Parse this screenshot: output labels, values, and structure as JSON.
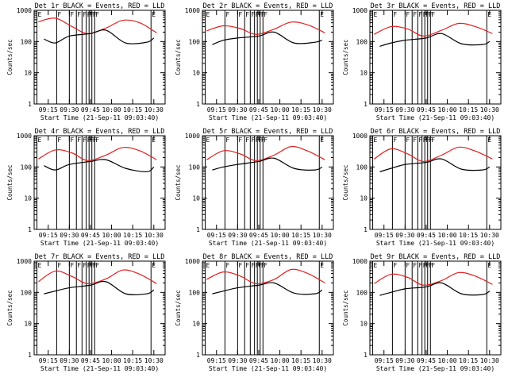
{
  "figure": {
    "panels_layout": "3x3 grid",
    "colors": {
      "events": "#000000",
      "lld": "#e02020",
      "axes": "#000000",
      "background": "#ffffff"
    }
  },
  "chart_data": [
    {
      "type": "line",
      "title": "Det 1r BLACK = Events, RED = LLD",
      "xlabel": "Start Time (21-Sep-11 09:03:40)",
      "ylabel": "Counts/sec",
      "yscale": "log",
      "ylim": [
        1,
        1000
      ],
      "xlim": [
        "09:05",
        "10:38"
      ],
      "ytick_labels": [
        "1",
        "10",
        "100",
        "1000"
      ],
      "xtick_labels": [
        "09:15",
        "09:30",
        "09:45",
        "10:00",
        "10:15",
        "10:30"
      ],
      "flag_labels": [
        "E",
        "F",
        "F",
        "F",
        "F",
        "F",
        "F",
        "F",
        "F",
        "E"
      ],
      "series": [
        {
          "x": [
            "09:08",
            "09:20",
            "09:32",
            "09:43",
            "09:56",
            "10:08",
            "10:20",
            "10:32"
          ],
          "values": [
            430,
            560,
            300,
            180,
            270,
            480,
            400,
            190
          ]
        },
        {
          "x": [
            "09:12",
            "09:20",
            "09:30",
            "09:45",
            "09:56",
            "10:10",
            "10:25",
            "10:30"
          ],
          "values": [
            120,
            90,
            150,
            180,
            230,
            90,
            95,
            130
          ]
        }
      ]
    },
    {
      "type": "line",
      "title": "Det 2r BLACK = Events, RED = LLD",
      "xlabel": "Start Time (21-Sep-11 09:03:40)",
      "ylabel": "Counts/sec",
      "yscale": "log",
      "ylim": [
        1,
        1000
      ],
      "xlim": [
        "09:05",
        "10:38"
      ],
      "ytick_labels": [
        "1",
        "10",
        "100",
        "1000"
      ],
      "xtick_labels": [
        "09:15",
        "09:30",
        "09:45",
        "10:00",
        "10:15",
        "10:30"
      ],
      "flag_labels": [
        "E",
        "F",
        "F",
        "F",
        "F",
        "F",
        "F",
        "F",
        "F",
        "E"
      ],
      "series": [
        {
          "x": [
            "09:08",
            "09:20",
            "09:32",
            "09:43",
            "09:56",
            "10:08",
            "10:20",
            "10:32"
          ],
          "values": [
            220,
            320,
            260,
            170,
            250,
            420,
            340,
            190
          ]
        },
        {
          "x": [
            "09:12",
            "09:20",
            "09:30",
            "09:45",
            "09:56",
            "10:10",
            "10:25",
            "10:30"
          ],
          "values": [
            80,
            110,
            130,
            150,
            200,
            90,
            95,
            110
          ]
        }
      ]
    },
    {
      "type": "line",
      "title": "Det 3r BLACK = Events, RED = LLD",
      "xlabel": "Start Time (21-Sep-11 09:03:40)",
      "ylabel": "Counts/sec",
      "yscale": "log",
      "ylim": [
        1,
        1000
      ],
      "xlim": [
        "09:05",
        "10:38"
      ],
      "ytick_labels": [
        "1",
        "10",
        "100",
        "1000"
      ],
      "xtick_labels": [
        "09:15",
        "09:30",
        "09:45",
        "10:00",
        "10:15",
        "10:30"
      ],
      "flag_labels": [
        "E",
        "F",
        "F",
        "F",
        "F",
        "F",
        "F",
        "F",
        "F",
        "E"
      ],
      "series": [
        {
          "x": [
            "09:08",
            "09:20",
            "09:32",
            "09:43",
            "09:56",
            "10:08",
            "10:20",
            "10:32"
          ],
          "values": [
            170,
            300,
            250,
            150,
            230,
            380,
            300,
            180
          ]
        },
        {
          "x": [
            "09:12",
            "09:20",
            "09:30",
            "09:45",
            "09:56",
            "10:10",
            "10:25",
            "10:30"
          ],
          "values": [
            70,
            90,
            110,
            130,
            180,
            85,
            80,
            100
          ]
        }
      ]
    },
    {
      "type": "line",
      "title": "Det 4r BLACK = Events, RED = LLD",
      "xlabel": "Start Time (21-Sep-11 09:03:40)",
      "ylabel": "Counts/sec",
      "yscale": "log",
      "ylim": [
        1,
        1000
      ],
      "xlim": [
        "09:05",
        "10:38"
      ],
      "ytick_labels": [
        "1",
        "10",
        "100",
        "1000"
      ],
      "xtick_labels": [
        "09:15",
        "09:30",
        "09:45",
        "10:00",
        "10:15",
        "10:30"
      ],
      "flag_labels": [
        "E",
        "F",
        "F",
        "F",
        "F",
        "F",
        "F",
        "F",
        "F",
        "E"
      ],
      "series": [
        {
          "x": [
            "09:08",
            "09:20",
            "09:32",
            "09:43",
            "09:56",
            "10:08",
            "10:20",
            "10:32"
          ],
          "values": [
            180,
            350,
            280,
            160,
            240,
            420,
            330,
            170
          ]
        },
        {
          "x": [
            "09:12",
            "09:20",
            "09:30",
            "09:45",
            "09:56",
            "10:10",
            "10:25",
            "10:30"
          ],
          "values": [
            110,
            80,
            120,
            150,
            170,
            90,
            70,
            100
          ]
        }
      ]
    },
    {
      "type": "line",
      "title": "Det 5r BLACK = Events, RED = LLD",
      "xlabel": "Start Time (21-Sep-11 09:03:40)",
      "ylabel": "Counts/sec",
      "yscale": "log",
      "ylim": [
        1,
        1000
      ],
      "xlim": [
        "09:05",
        "10:38"
      ],
      "ytick_labels": [
        "1",
        "10",
        "100",
        "1000"
      ],
      "xtick_labels": [
        "09:15",
        "09:30",
        "09:45",
        "10:00",
        "10:15",
        "10:30"
      ],
      "flag_labels": [
        "E",
        "F",
        "F",
        "F",
        "F",
        "F",
        "F",
        "F",
        "F",
        "E"
      ],
      "series": [
        {
          "x": [
            "09:08",
            "09:20",
            "09:32",
            "09:43",
            "09:56",
            "10:08",
            "10:20",
            "10:32"
          ],
          "values": [
            170,
            330,
            260,
            160,
            240,
            450,
            320,
            170
          ]
        },
        {
          "x": [
            "09:12",
            "09:20",
            "09:30",
            "09:45",
            "09:56",
            "10:10",
            "10:25",
            "10:30"
          ],
          "values": [
            80,
            100,
            120,
            150,
            190,
            90,
            80,
            100
          ]
        }
      ]
    },
    {
      "type": "line",
      "title": "Det 6r BLACK = Events, RED = LLD",
      "xlabel": "Start Time (21-Sep-11 09:03:40)",
      "ylabel": "Counts/sec",
      "yscale": "log",
      "ylim": [
        1,
        1000
      ],
      "xlim": [
        "09:05",
        "10:38"
      ],
      "ytick_labels": [
        "1",
        "10",
        "100",
        "1000"
      ],
      "xtick_labels": [
        "09:15",
        "09:30",
        "09:45",
        "10:00",
        "10:15",
        "10:30"
      ],
      "flag_labels": [
        "E",
        "F",
        "F",
        "F",
        "F",
        "F",
        "F",
        "F",
        "F",
        "E"
      ],
      "series": [
        {
          "x": [
            "09:08",
            "09:20",
            "09:32",
            "09:43",
            "09:56",
            "10:08",
            "10:20",
            "10:32"
          ],
          "values": [
            180,
            380,
            260,
            150,
            240,
            430,
            320,
            180
          ]
        },
        {
          "x": [
            "09:12",
            "09:20",
            "09:30",
            "09:45",
            "09:56",
            "10:10",
            "10:25",
            "10:30"
          ],
          "values": [
            70,
            90,
            120,
            140,
            180,
            85,
            80,
            100
          ]
        }
      ]
    },
    {
      "type": "line",
      "title": "Det 7r BLACK = Events, RED = LLD",
      "xlabel": "Start Time (21-Sep-11 09:03:40)",
      "ylabel": "Counts/sec",
      "yscale": "log",
      "ylim": [
        1,
        1000
      ],
      "xlim": [
        "09:05",
        "10:38"
      ],
      "ytick_labels": [
        "1",
        "10",
        "100",
        "1000"
      ],
      "xtick_labels": [
        "09:15",
        "09:30",
        "09:45",
        "10:00",
        "10:15",
        "10:30"
      ],
      "flag_labels": [
        "E",
        "F",
        "F",
        "F",
        "F",
        "F",
        "F",
        "F",
        "F",
        "E"
      ],
      "series": [
        {
          "x": [
            "09:08",
            "09:20",
            "09:32",
            "09:43",
            "09:56",
            "10:08",
            "10:20",
            "10:32"
          ],
          "values": [
            220,
            480,
            320,
            190,
            270,
            520,
            380,
            190
          ]
        },
        {
          "x": [
            "09:12",
            "09:20",
            "09:30",
            "09:45",
            "09:56",
            "10:10",
            "10:25",
            "10:30"
          ],
          "values": [
            90,
            110,
            140,
            170,
            220,
            90,
            90,
            120
          ]
        }
      ]
    },
    {
      "type": "line",
      "title": "Det 8r BLACK = Events, RED = LLD",
      "xlabel": "Start Time (21-Sep-11 09:03:40)",
      "ylabel": "Counts/sec",
      "yscale": "log",
      "ylim": [
        1,
        1000
      ],
      "xlim": [
        "09:05",
        "10:38"
      ],
      "ytick_labels": [
        "1",
        "10",
        "100",
        "1000"
      ],
      "xtick_labels": [
        "09:15",
        "09:30",
        "09:45",
        "10:00",
        "10:15",
        "10:30"
      ],
      "flag_labels": [
        "E",
        "F",
        "F",
        "F",
        "F",
        "F",
        "F",
        "F",
        "F",
        "E"
      ],
      "series": [
        {
          "x": [
            "09:08",
            "09:20",
            "09:32",
            "09:43",
            "09:56",
            "10:08",
            "10:20",
            "10:32"
          ],
          "values": [
            260,
            450,
            330,
            190,
            260,
            540,
            400,
            200
          ]
        },
        {
          "x": [
            "09:12",
            "09:20",
            "09:30",
            "09:45",
            "09:56",
            "10:10",
            "10:25",
            "10:30"
          ],
          "values": [
            90,
            110,
            140,
            170,
            200,
            95,
            90,
            120
          ]
        }
      ]
    },
    {
      "type": "line",
      "title": "Det 9r BLACK = Events, RED = LLD",
      "xlabel": "Start Time (21-Sep-11 09:03:40)",
      "ylabel": "Counts/sec",
      "yscale": "log",
      "ylim": [
        1,
        1000
      ],
      "xlim": [
        "09:05",
        "10:38"
      ],
      "ytick_labels": [
        "1",
        "10",
        "100",
        "1000"
      ],
      "xtick_labels": [
        "09:15",
        "09:30",
        "09:45",
        "10:00",
        "10:15",
        "10:30"
      ],
      "flag_labels": [
        "E",
        "F",
        "F",
        "F",
        "F",
        "F",
        "F",
        "F",
        "F",
        "E"
      ],
      "series": [
        {
          "x": [
            "09:08",
            "09:20",
            "09:32",
            "09:43",
            "09:56",
            "10:08",
            "10:20",
            "10:32"
          ],
          "values": [
            190,
            380,
            300,
            170,
            240,
            430,
            330,
            180
          ]
        },
        {
          "x": [
            "09:12",
            "09:20",
            "09:30",
            "09:45",
            "09:56",
            "10:10",
            "10:25",
            "10:30"
          ],
          "values": [
            80,
            100,
            130,
            150,
            200,
            90,
            85,
            110
          ]
        }
      ]
    }
  ]
}
